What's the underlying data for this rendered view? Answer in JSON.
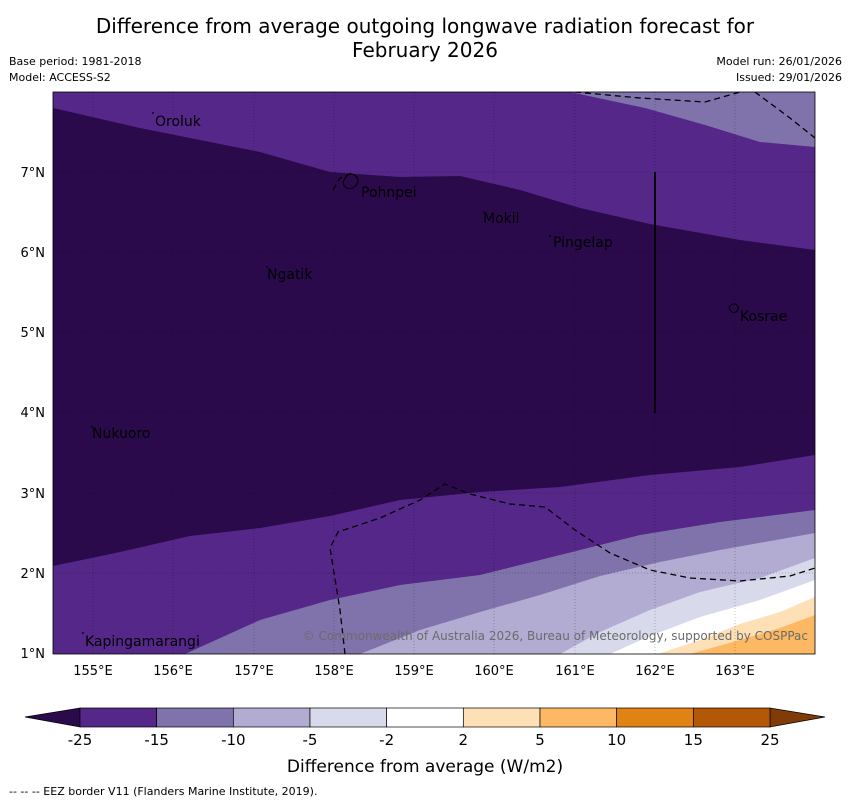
{
  "header": {
    "title_line1": "Difference from average outgoing longwave radiation forecast for",
    "title_line2": "February 2026",
    "base_period": "Base period: 1981-2018",
    "model": "Model: ACCESS-S2",
    "model_run": "Model run: 26/01/2026",
    "issued": "Issued: 29/01/2026"
  },
  "map": {
    "lat_labels": [
      "1°N",
      "2°N",
      "3°N",
      "4°N",
      "5°N",
      "6°N",
      "7°N"
    ],
    "lon_labels": [
      "155°E",
      "156°E",
      "157°E",
      "158°E",
      "159°E",
      "160°E",
      "161°E",
      "162°E",
      "163°E"
    ],
    "places": [
      "Oroluk",
      "Pohnpei",
      "Mokil",
      "Pingelap",
      "Ngatik",
      "Kosrae",
      "Nukuoro",
      "Kapingamarangi"
    ],
    "copyright": "© Commonwealth of Australia 2026, Bureau of Meteorology, supported by COSPPac",
    "colors": {
      "lt_-25": "#2b0a4b",
      "-25_-15": "#542788",
      "-15_-10": "#8073ac",
      "-10_-5": "#b2abd2",
      "-5_-2": "#d8daeb",
      "-2_2": "#ffffff",
      "2_5": "#fee0b6",
      "5_10": "#fdb863",
      "10_15": "#e08214",
      "15_25": "#b35806",
      "gt_25": "#7f3b08"
    }
  },
  "colorbar": {
    "ticks": [
      "-25",
      "-15",
      "-10",
      "-5",
      "-2",
      "2",
      "5",
      "10",
      "15",
      "25"
    ],
    "colors": [
      "#542788",
      "#8073ac",
      "#b2abd2",
      "#d8daeb",
      "#ffffff",
      "#fee0b6",
      "#fdb863",
      "#e08214",
      "#b35806"
    ],
    "low_extend_color": "#2b0a4b",
    "high_extend_color": "#7f3b08",
    "label": "Difference from average (W/m2)"
  },
  "footnote": "--  --  -- EEZ border V11 (Flanders Marine Institute, 2019)."
}
